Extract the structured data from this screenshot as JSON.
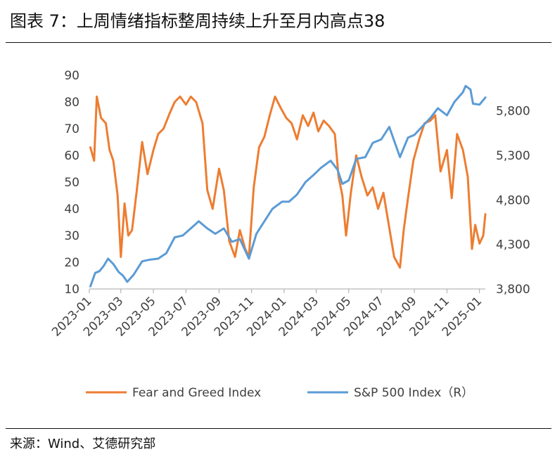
{
  "figure": {
    "title": "图表 7：上周情绪指标整周持续上升至月内高点38",
    "source": "来源：Wind、艾德研究部"
  },
  "chart_data": {
    "type": "line",
    "title": "上周情绪指标整周持续上升至月内高点38",
    "x_tick_labels": [
      "2023-01",
      "2023-03",
      "2023-05",
      "2023-07",
      "2023-09",
      "2023-11",
      "2024-01",
      "2024-03",
      "2024-05",
      "2024-07",
      "2024-09",
      "2024-11",
      "2025-01"
    ],
    "y_left": {
      "label": "",
      "ylim": [
        10,
        90
      ],
      "ticks": [
        10,
        20,
        30,
        40,
        50,
        60,
        70,
        80,
        90
      ]
    },
    "y_right": {
      "label": "",
      "ylim": [
        3800,
        6200
      ],
      "ticks": [
        3800,
        4300,
        4800,
        5300,
        5800
      ],
      "tick_labels": [
        "3,800",
        "4,300",
        "4,800",
        "5,300",
        "5,800"
      ]
    },
    "colors": {
      "fear_greed": "#ED7D31",
      "sp500": "#5B9BD5"
    },
    "series": [
      {
        "name": "Fear and Greed Index",
        "axis": "left",
        "x": [
          "2023-01-03",
          "2023-01-10",
          "2023-01-15",
          "2023-01-23",
          "2023-02-01",
          "2023-02-08",
          "2023-02-15",
          "2023-02-23",
          "2023-03-01",
          "2023-03-08",
          "2023-03-15",
          "2023-03-22",
          "2023-03-31",
          "2023-04-10",
          "2023-04-20",
          "2023-05-01",
          "2023-05-10",
          "2023-05-20",
          "2023-06-01",
          "2023-06-10",
          "2023-06-20",
          "2023-07-01",
          "2023-07-10",
          "2023-07-20",
          "2023-08-01",
          "2023-08-10",
          "2023-08-20",
          "2023-09-01",
          "2023-09-10",
          "2023-09-20",
          "2023-10-01",
          "2023-10-10",
          "2023-10-20",
          "2023-10-27",
          "2023-11-05",
          "2023-11-15",
          "2023-11-25",
          "2023-12-05",
          "2023-12-15",
          "2023-12-25",
          "2024-01-05",
          "2024-01-15",
          "2024-01-25",
          "2024-02-05",
          "2024-02-15",
          "2024-02-25",
          "2024-03-05",
          "2024-03-15",
          "2024-03-25",
          "2024-04-05",
          "2024-04-12",
          "2024-04-19",
          "2024-04-26",
          "2024-05-05",
          "2024-05-15",
          "2024-05-25",
          "2024-06-05",
          "2024-06-15",
          "2024-06-25",
          "2024-07-05",
          "2024-07-15",
          "2024-07-25",
          "2024-08-05",
          "2024-08-12",
          "2024-08-20",
          "2024-08-30",
          "2024-09-10",
          "2024-09-20",
          "2024-10-01",
          "2024-10-10",
          "2024-10-20",
          "2024-11-01",
          "2024-11-10",
          "2024-11-20",
          "2024-12-01",
          "2024-12-10",
          "2024-12-18",
          "2024-12-24",
          "2025-01-01",
          "2025-01-08",
          "2025-01-12"
        ],
        "values": [
          63,
          58,
          82,
          74,
          72,
          62,
          58,
          45,
          22,
          42,
          30,
          32,
          47,
          65,
          53,
          62,
          68,
          70,
          76,
          80,
          82,
          79,
          82,
          80,
          72,
          47,
          40,
          55,
          47,
          28,
          22,
          32,
          25,
          22,
          48,
          63,
          67,
          75,
          82,
          78,
          74,
          72,
          66,
          75,
          71,
          76,
          69,
          73,
          71,
          68,
          52,
          45,
          30,
          46,
          60,
          52,
          45,
          48,
          40,
          46,
          34,
          22,
          18,
          32,
          44,
          58,
          66,
          72,
          73,
          75,
          54,
          62,
          44,
          68,
          62,
          52,
          25,
          34,
          27,
          30,
          38
        ]
      },
      {
        "name": "S&P 500 Index（R）",
        "axis": "right",
        "x": [
          "2023-01-03",
          "2023-01-12",
          "2023-01-20",
          "2023-01-28",
          "2023-02-05",
          "2023-02-15",
          "2023-02-25",
          "2023-03-05",
          "2023-03-13",
          "2023-03-25",
          "2023-04-10",
          "2023-04-25",
          "2023-05-10",
          "2023-05-25",
          "2023-06-10",
          "2023-06-25",
          "2023-07-10",
          "2023-07-25",
          "2023-08-10",
          "2023-08-25",
          "2023-09-10",
          "2023-09-25",
          "2023-10-10",
          "2023-10-27",
          "2023-11-10",
          "2023-11-25",
          "2023-12-10",
          "2023-12-28",
          "2024-01-10",
          "2024-01-25",
          "2024-02-10",
          "2024-02-25",
          "2024-03-10",
          "2024-03-28",
          "2024-04-10",
          "2024-04-19",
          "2024-05-01",
          "2024-05-15",
          "2024-06-01",
          "2024-06-15",
          "2024-07-01",
          "2024-07-16",
          "2024-08-05",
          "2024-08-20",
          "2024-09-01",
          "2024-09-15",
          "2024-10-01",
          "2024-10-15",
          "2024-11-01",
          "2024-11-15",
          "2024-12-01",
          "2024-12-06",
          "2024-12-15",
          "2024-12-20",
          "2025-01-01",
          "2025-01-12"
        ],
        "values": [
          3830,
          3980,
          4000,
          4060,
          4140,
          4080,
          3990,
          3950,
          3880,
          3960,
          4110,
          4130,
          4140,
          4200,
          4380,
          4400,
          4480,
          4560,
          4480,
          4420,
          4480,
          4330,
          4360,
          4140,
          4420,
          4560,
          4700,
          4780,
          4780,
          4860,
          5000,
          5080,
          5160,
          5240,
          5140,
          4980,
          5020,
          5260,
          5280,
          5440,
          5480,
          5620,
          5280,
          5500,
          5530,
          5620,
          5720,
          5830,
          5750,
          5900,
          6010,
          6080,
          6040,
          5880,
          5870,
          5950
        ]
      }
    ],
    "legend": {
      "placement": "bottom"
    }
  }
}
